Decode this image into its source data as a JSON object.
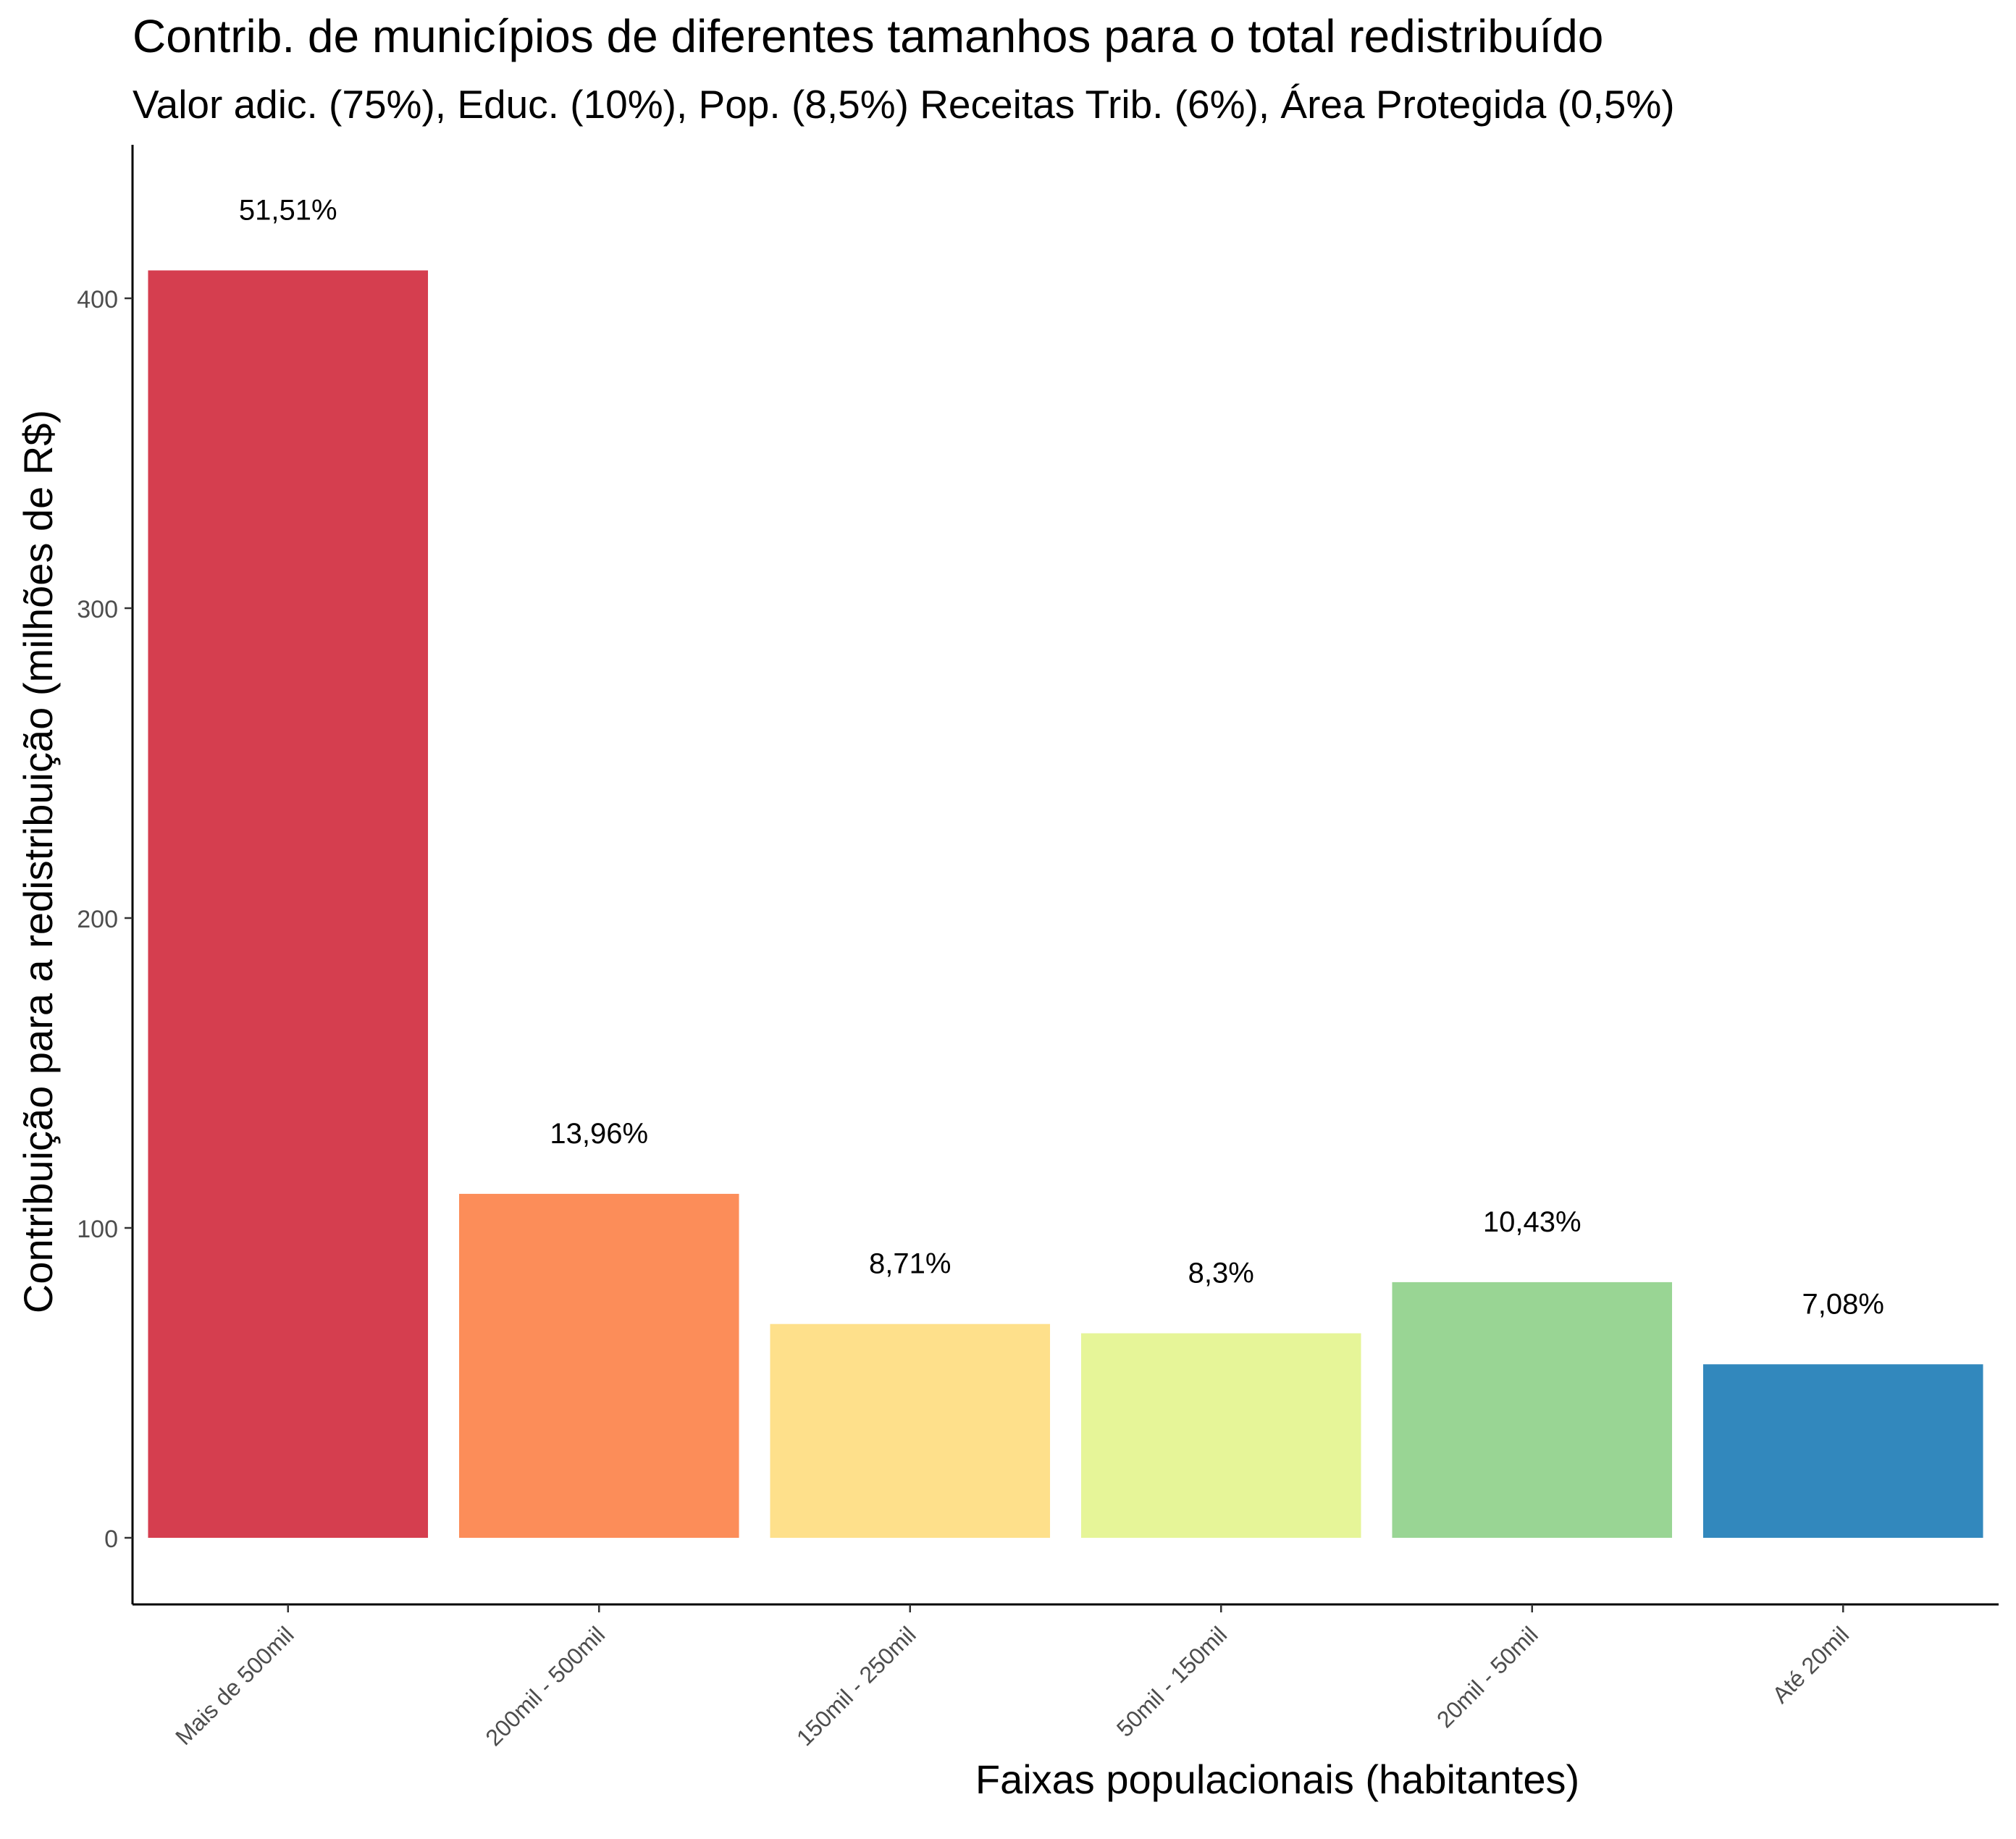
{
  "chart_data": {
    "type": "bar",
    "title": "Contrib. de municípios de diferentes tamanhos para o total redistribuído",
    "subtitle": "Valor adic. (75%), Educ. (10%), Pop. (8,5%) Receitas Trib. (6%), Área Protegida (0,5%)",
    "xlabel": "Faixas populacionais (habitantes)",
    "ylabel": "Contribuição para a redistribuição (milhões de R$)",
    "categories": [
      "Mais de 500mil",
      "200mil - 500mil",
      "150mil - 250mil",
      "50mil - 150mil",
      "20mil - 50mil",
      "Até 20mil"
    ],
    "values": [
      409,
      111,
      69,
      66,
      82.5,
      56
    ],
    "labels": [
      "51,51%",
      "13,96%",
      "8,71%",
      "8,3%",
      "10,43%",
      "7,08%"
    ],
    "colors": [
      "#D53E4F",
      "#FC8D59",
      "#FEE08B",
      "#E6F598",
      "#99D594",
      "#3288BD"
    ],
    "ylim": [
      -21,
      448
    ],
    "yticks": [
      0,
      100,
      200,
      300,
      400
    ],
    "ytick_labels": [
      "0",
      "100",
      "200",
      "300",
      "400"
    ],
    "grid": false,
    "legend": "none"
  }
}
